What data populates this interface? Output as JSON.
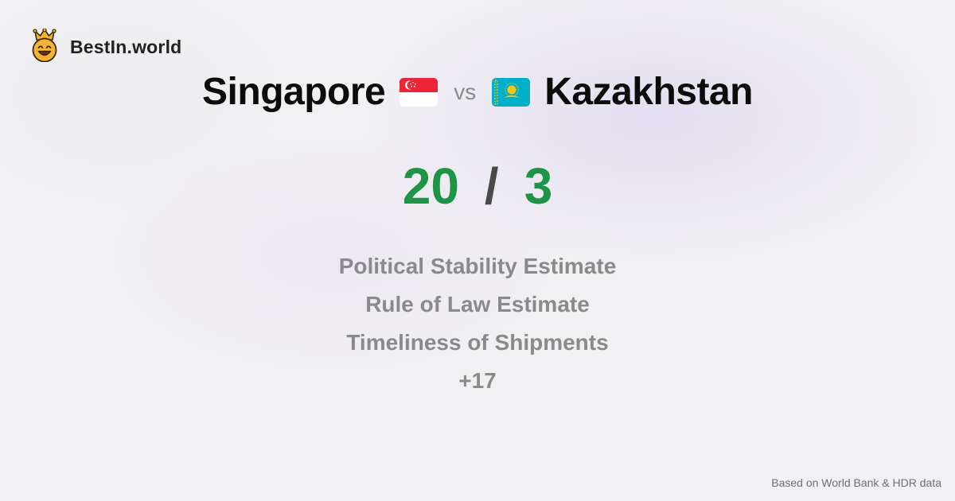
{
  "brand": {
    "name": "BestIn.world",
    "icon": "crowned-smiley-icon",
    "icon_color": "#f6b234"
  },
  "comparison": {
    "country_a": {
      "name": "Singapore",
      "flag_icon": "singapore-flag-icon"
    },
    "vs_label": "vs",
    "country_b": {
      "name": "Kazakhstan",
      "flag_icon": "kazakhstan-flag-icon"
    }
  },
  "score": {
    "a": "20",
    "separator": "/",
    "b": "3",
    "color": "#1e9447"
  },
  "metrics": [
    "Political Stability Estimate",
    "Rule of Law Estimate",
    "Timeliness of Shipments",
    "+17"
  ],
  "footer": {
    "source": "Based on World Bank & HDR data"
  }
}
